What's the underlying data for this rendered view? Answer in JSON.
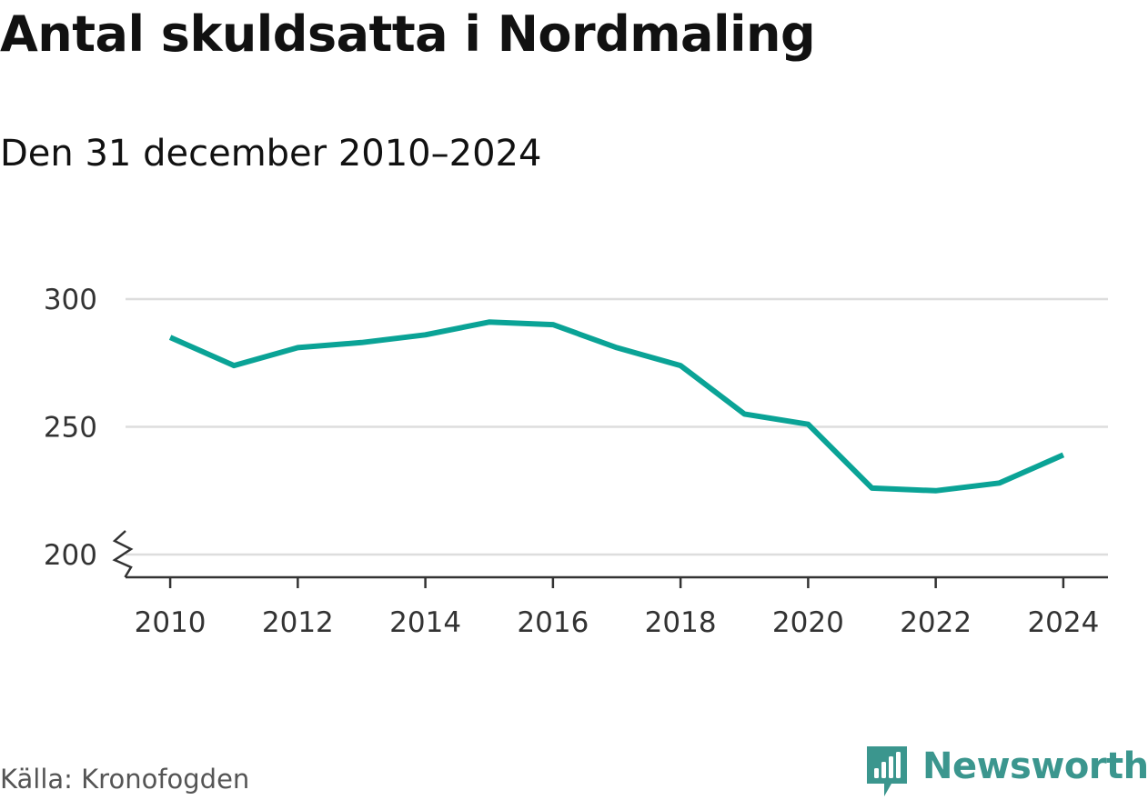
{
  "header": {
    "title": "Antal skuldsatta i Nordmaling",
    "subtitle": "Den 31 december 2010–2024"
  },
  "footer": {
    "source": "Källa: Kronofogden",
    "brand": "Newsworthy"
  },
  "colors": {
    "line": "#0aa396",
    "brand": "#3b968e",
    "grid": "#dddddd",
    "axis": "#333333"
  },
  "icons": {
    "brand_logo": "bar-chart-speech-bubble-icon",
    "axis_break": "zigzag-axis-break-icon"
  },
  "chart_data": {
    "type": "line",
    "title": "Antal skuldsatta i Nordmaling",
    "subtitle": "Den 31 december 2010–2024",
    "xlabel": "",
    "ylabel": "",
    "x": [
      2010,
      2011,
      2012,
      2013,
      2014,
      2015,
      2016,
      2017,
      2018,
      2019,
      2020,
      2021,
      2022,
      2023,
      2024
    ],
    "series": [
      {
        "values": [
          285,
          274,
          281,
          283,
          286,
          291,
          290,
          281,
          274,
          255,
          251,
          226,
          225,
          228,
          239
        ]
      }
    ],
    "xlim": [
      2009.3,
      2024.7
    ],
    "ylim": [
      200,
      300
    ],
    "y_ticks": [
      200,
      250,
      300
    ],
    "x_ticks": [
      2010,
      2012,
      2014,
      2016,
      2018,
      2020,
      2022,
      2024
    ],
    "y_axis_break": true,
    "grid": "horizontal",
    "legend": "none"
  }
}
